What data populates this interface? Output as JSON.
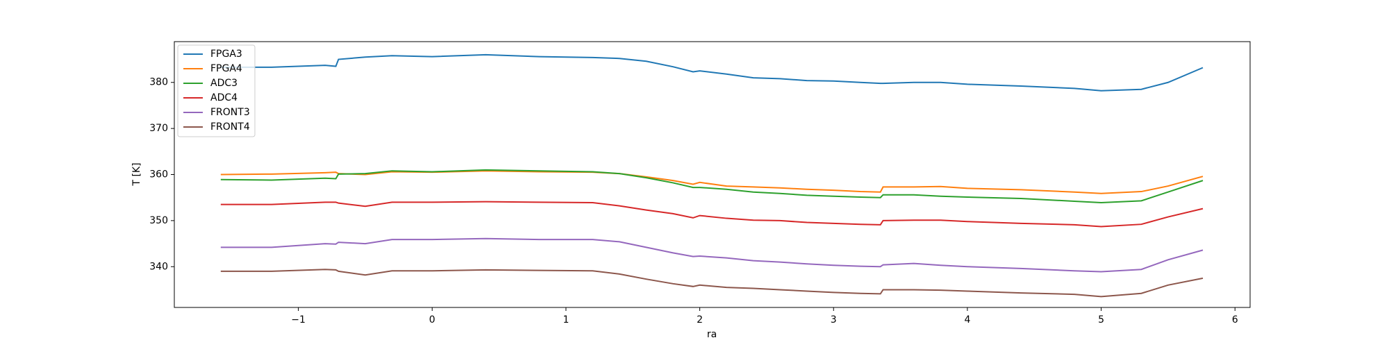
{
  "chart_data": {
    "type": "line",
    "xlabel": "ra",
    "ylabel": "T [K]",
    "x": [
      -1.58,
      -1.2,
      -0.8,
      -0.72,
      -0.7,
      -0.5,
      -0.3,
      0,
      0.4,
      0.8,
      1.2,
      1.4,
      1.6,
      1.8,
      1.95,
      2.0,
      2.2,
      2.4,
      2.6,
      2.8,
      3.0,
      3.2,
      3.35,
      3.37,
      3.6,
      3.8,
      4.0,
      4.4,
      4.8,
      5.0,
      5.3,
      5.5,
      5.76
    ],
    "series": [
      {
        "name": "FPGA3",
        "color": "#1f77b4",
        "values": [
          383.3,
          383.3,
          383.7,
          383.5,
          385,
          385.5,
          385.8,
          385.6,
          386,
          385.6,
          385.4,
          385.2,
          384.6,
          383.4,
          382.3,
          382.5,
          381.8,
          381,
          380.8,
          380.4,
          380.3,
          380,
          379.8,
          379.8,
          380,
          380,
          379.6,
          379.2,
          378.7,
          378.2,
          378.5,
          380,
          383.2
        ]
      },
      {
        "name": "FPGA4",
        "color": "#ff7f0e",
        "values": [
          360,
          360.1,
          360.4,
          360.5,
          360.2,
          360,
          360.6,
          360.5,
          360.8,
          360.6,
          360.5,
          360.2,
          359.5,
          358.7,
          357.9,
          358.3,
          357.5,
          357.3,
          357.1,
          356.8,
          356.6,
          356.3,
          356.2,
          357.3,
          357.3,
          357.4,
          357,
          356.7,
          356.2,
          355.9,
          356.3,
          357.5,
          359.6
        ]
      },
      {
        "name": "ADC3",
        "color": "#2ca02c",
        "values": [
          358.9,
          358.8,
          359.2,
          359.1,
          360.1,
          360.2,
          360.8,
          360.6,
          361,
          360.8,
          360.6,
          360.2,
          359.3,
          358.2,
          357.2,
          357.2,
          356.8,
          356.2,
          355.9,
          355.5,
          355.3,
          355.1,
          355,
          355.6,
          355.6,
          355.3,
          355.1,
          354.8,
          354.2,
          353.9,
          354.3,
          356.2,
          358.7
        ]
      },
      {
        "name": "ADC4",
        "color": "#d62728",
        "values": [
          353.5,
          353.5,
          354,
          354,
          353.8,
          353.1,
          354,
          354,
          354.1,
          354,
          353.9,
          353.2,
          352.3,
          351.5,
          350.6,
          351.1,
          350.5,
          350.1,
          350,
          349.6,
          349.4,
          349.2,
          349.1,
          350,
          350.1,
          350.1,
          349.8,
          349.4,
          349.1,
          348.7,
          349.2,
          350.8,
          352.6
        ]
      },
      {
        "name": "FRONT3",
        "color": "#9467bd",
        "values": [
          344.2,
          344.2,
          345,
          344.9,
          345.3,
          345,
          345.9,
          345.9,
          346.1,
          345.9,
          345.9,
          345.4,
          344.2,
          343,
          342.2,
          342.3,
          341.9,
          341.3,
          341,
          340.6,
          340.3,
          340.1,
          340,
          340.4,
          340.7,
          340.3,
          340,
          339.6,
          339.1,
          338.9,
          339.4,
          341.5,
          343.6
        ]
      },
      {
        "name": "FRONT4",
        "color": "#8c564b",
        "values": [
          339,
          339,
          339.4,
          339.3,
          339,
          338.2,
          339.1,
          339.1,
          339.3,
          339.2,
          339.1,
          338.4,
          337.3,
          336.3,
          335.7,
          336,
          335.5,
          335.3,
          335,
          334.7,
          334.4,
          334.2,
          334.1,
          335,
          335,
          334.9,
          334.7,
          334.3,
          334,
          333.5,
          334.2,
          336,
          337.5
        ]
      }
    ],
    "xlim": [
      -1.927,
      6.113
    ],
    "ylim": [
      331.15,
      388.85
    ],
    "xticks": [
      {
        "value": -1,
        "label": "−1"
      },
      0,
      1,
      2,
      3,
      4,
      5,
      6
    ],
    "yticks": [
      340,
      350,
      360,
      370,
      380
    ],
    "grid": false,
    "legend": "upper left"
  }
}
